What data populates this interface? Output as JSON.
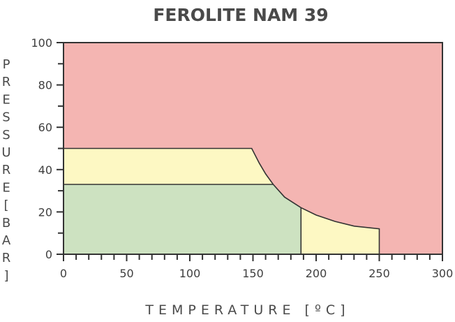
{
  "chart_data": {
    "type": "area",
    "title": "FEROLITE NAM 39",
    "xlabel": "TEMPERATURE [ºC]",
    "ylabel": "PRESSURE [BAR]",
    "xlim": [
      0,
      300
    ],
    "ylim": [
      0,
      100
    ],
    "x_ticks": [
      0,
      50,
      100,
      150,
      200,
      250,
      300
    ],
    "y_ticks": [
      0,
      20,
      40,
      60,
      80,
      100
    ],
    "x_minor_step": 10,
    "y_minor_step": 10,
    "grid": false,
    "legend": "none",
    "regions": [
      {
        "color": "#f4b5b2",
        "points": [
          [
            0,
            0
          ],
          [
            300,
            0
          ],
          [
            300,
            100
          ],
          [
            0,
            100
          ]
        ]
      },
      {
        "color": "#fdf8c3",
        "points": [
          [
            0,
            50
          ],
          [
            149,
            50
          ],
          [
            155,
            43
          ],
          [
            160,
            38
          ],
          [
            166,
            33
          ],
          [
            175,
            27
          ],
          [
            188,
            22
          ],
          [
            200,
            18.5
          ],
          [
            215,
            15.5
          ],
          [
            230,
            13.3
          ],
          [
            250,
            12
          ],
          [
            250,
            0
          ],
          [
            0,
            0
          ]
        ]
      },
      {
        "color": "#cde2c1",
        "points": [
          [
            0,
            33
          ],
          [
            166,
            33
          ],
          [
            175,
            27
          ],
          [
            188,
            22
          ],
          [
            188,
            0
          ],
          [
            0,
            0
          ]
        ]
      }
    ],
    "lines": [
      [
        [
          0,
          50
        ],
        [
          149,
          50
        ],
        [
          155,
          43
        ],
        [
          160,
          38
        ],
        [
          166,
          33
        ],
        [
          175,
          27
        ],
        [
          188,
          22
        ],
        [
          200,
          18.5
        ],
        [
          215,
          15.5
        ],
        [
          230,
          13.3
        ],
        [
          250,
          12
        ],
        [
          250,
          0
        ]
      ],
      [
        [
          0,
          33
        ],
        [
          166,
          33
        ]
      ],
      [
        [
          188,
          22
        ],
        [
          188,
          0
        ]
      ]
    ]
  }
}
